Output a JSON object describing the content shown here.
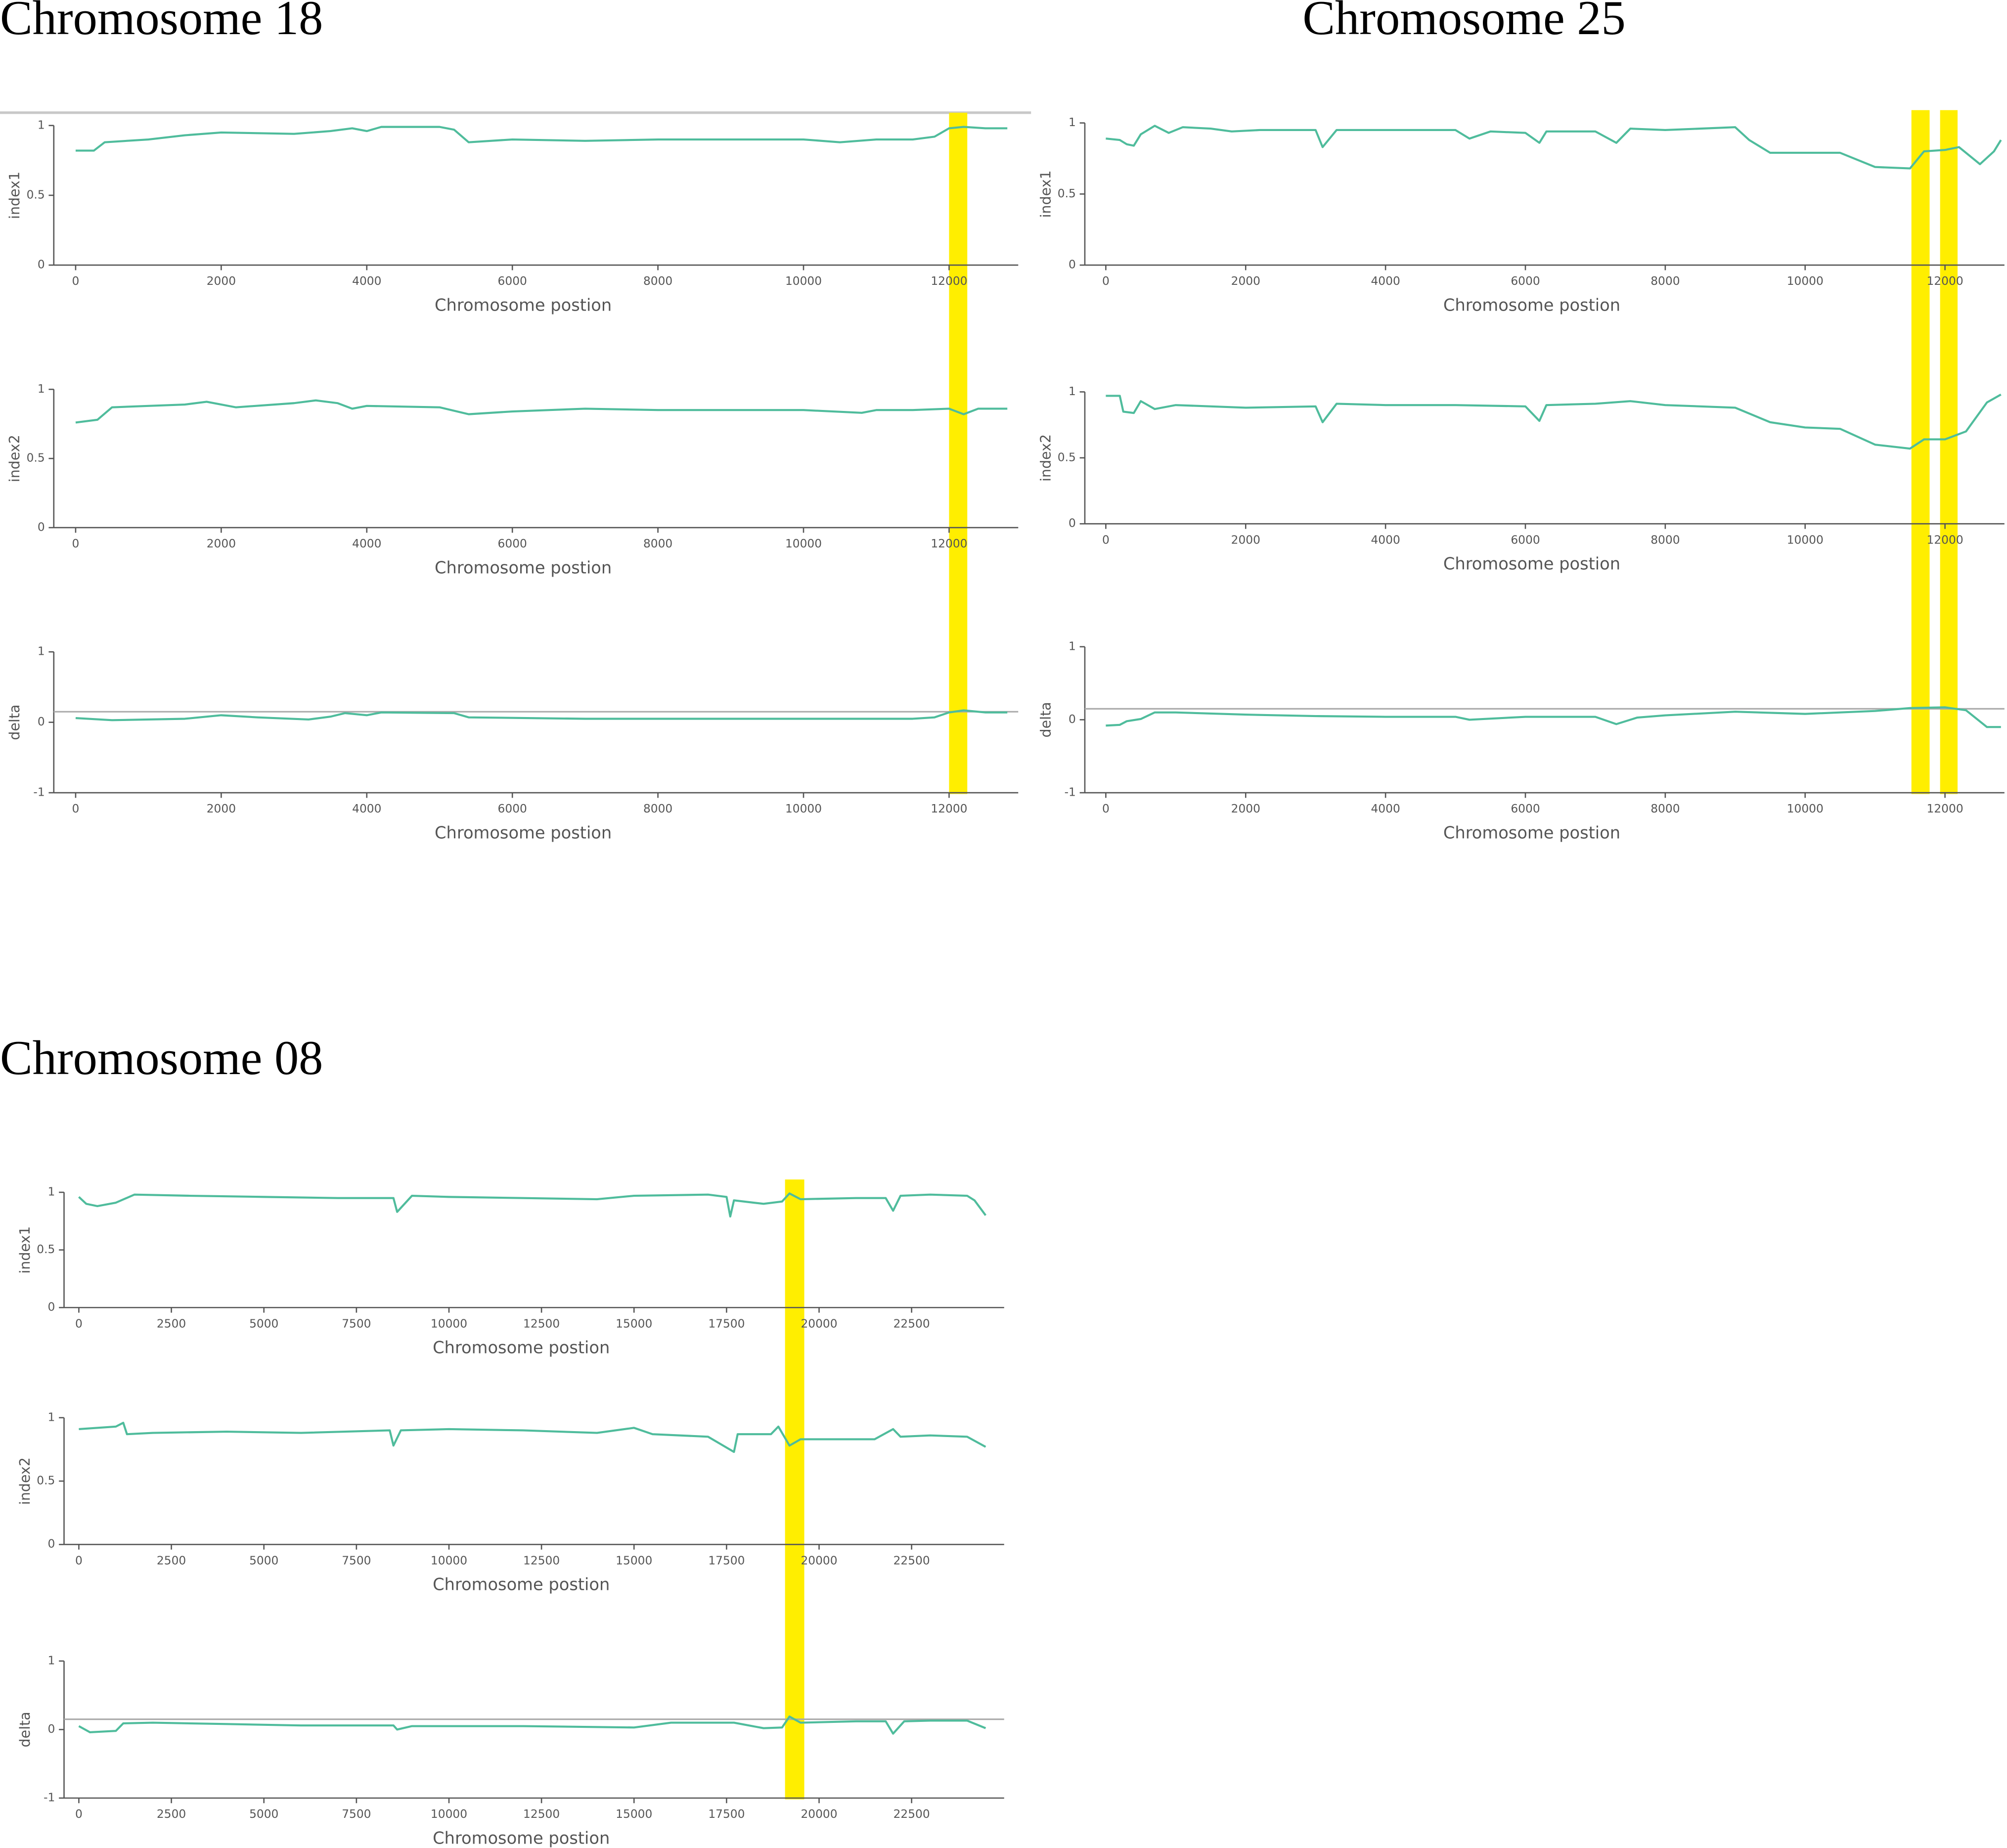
{
  "chart_data": [
    {
      "type": "line",
      "title": "Chromosome 18",
      "ylabel": "index1",
      "xlabel": "Chromosome postion",
      "color": "#4fbc9c",
      "xlim": [
        -300,
        12950
      ],
      "ylim": [
        0,
        1
      ],
      "xticks": [
        0,
        2000,
        4000,
        6000,
        8000,
        10000,
        12000
      ],
      "yticks": [
        0,
        0.5,
        1
      ],
      "highlights": [
        [
          12000,
          12250
        ]
      ],
      "highlight_color": "#ffee00",
      "x": [
        0,
        250,
        400,
        1000,
        1500,
        2000,
        3000,
        3500,
        3800,
        4000,
        4200,
        5000,
        5200,
        5400,
        6000,
        7000,
        8000,
        9000,
        10000,
        10500,
        11000,
        11500,
        11800,
        12000,
        12200,
        12500,
        12800
      ],
      "values": [
        0.82,
        0.82,
        0.88,
        0.9,
        0.93,
        0.95,
        0.94,
        0.96,
        0.98,
        0.96,
        0.99,
        0.99,
        0.97,
        0.88,
        0.9,
        0.89,
        0.9,
        0.9,
        0.9,
        0.88,
        0.9,
        0.9,
        0.92,
        0.98,
        0.99,
        0.98,
        0.98
      ]
    },
    {
      "type": "line",
      "ylabel": "index2",
      "xlabel": "Chromosome postion",
      "color": "#4fbc9c",
      "xlim": [
        -300,
        12950
      ],
      "ylim": [
        0,
        1
      ],
      "xticks": [
        0,
        2000,
        4000,
        6000,
        8000,
        10000,
        12000
      ],
      "yticks": [
        0,
        0.5,
        1
      ],
      "x": [
        0,
        300,
        500,
        1000,
        1500,
        1800,
        2200,
        3000,
        3300,
        3600,
        3800,
        4000,
        5000,
        5400,
        6000,
        7000,
        8000,
        9000,
        10000,
        10800,
        11000,
        11500,
        12000,
        12200,
        12400,
        12800
      ],
      "values": [
        0.76,
        0.78,
        0.87,
        0.88,
        0.89,
        0.91,
        0.87,
        0.9,
        0.92,
        0.9,
        0.86,
        0.88,
        0.87,
        0.82,
        0.84,
        0.86,
        0.85,
        0.85,
        0.85,
        0.83,
        0.85,
        0.85,
        0.86,
        0.82,
        0.86,
        0.86
      ]
    },
    {
      "type": "line",
      "ylabel": "delta",
      "xlabel": "Chromosome postion",
      "color": "#4fbc9c",
      "xlim": [
        -300,
        12950
      ],
      "ylim": [
        -1,
        1
      ],
      "xticks": [
        0,
        2000,
        4000,
        6000,
        8000,
        10000,
        12000
      ],
      "yticks": [
        -1,
        0,
        1
      ],
      "hline": 0.15,
      "hline_color": "#aaaaaa",
      "x": [
        0,
        500,
        1500,
        2000,
        2500,
        3200,
        3500,
        3700,
        4000,
        4200,
        5200,
        5400,
        7000,
        9000,
        10000,
        11500,
        11800,
        12000,
        12200,
        12500,
        12800
      ],
      "values": [
        0.06,
        0.03,
        0.05,
        0.1,
        0.07,
        0.04,
        0.08,
        0.13,
        0.1,
        0.14,
        0.13,
        0.07,
        0.05,
        0.05,
        0.05,
        0.05,
        0.07,
        0.14,
        0.17,
        0.14,
        0.14
      ]
    },
    {
      "type": "line",
      "title": "Chromosome 25",
      "ylabel": "index1",
      "xlabel": "Chromosome postion",
      "color": "#4fbc9c",
      "xlim": [
        -300,
        12850
      ],
      "ylim": [
        0,
        1
      ],
      "xticks": [
        0,
        2000,
        4000,
        6000,
        8000,
        10000,
        12000
      ],
      "yticks": [
        0,
        0.5,
        1
      ],
      "highlights": [
        [
          11520,
          11780
        ],
        [
          11930,
          12180
        ]
      ],
      "highlight_color": "#ffee00",
      "x": [
        0,
        200,
        300,
        400,
        500,
        700,
        900,
        1100,
        1500,
        1800,
        2200,
        3000,
        3100,
        3300,
        4000,
        5000,
        5200,
        5500,
        6000,
        6200,
        6300,
        7000,
        7300,
        7500,
        8000,
        9000,
        9200,
        9500,
        10500,
        11000,
        11500,
        11700,
        12000,
        12200,
        12400,
        12500,
        12700,
        12800
      ],
      "values": [
        0.89,
        0.88,
        0.85,
        0.84,
        0.92,
        0.98,
        0.93,
        0.97,
        0.96,
        0.94,
        0.95,
        0.95,
        0.83,
        0.95,
        0.95,
        0.95,
        0.89,
        0.94,
        0.93,
        0.86,
        0.94,
        0.94,
        0.86,
        0.96,
        0.95,
        0.97,
        0.88,
        0.79,
        0.79,
        0.69,
        0.68,
        0.8,
        0.81,
        0.83,
        0.75,
        0.71,
        0.8,
        0.88
      ]
    },
    {
      "type": "line",
      "ylabel": "index2",
      "xlabel": "Chromosome postion",
      "color": "#4fbc9c",
      "xlim": [
        -300,
        12850
      ],
      "ylim": [
        0,
        1
      ],
      "xticks": [
        0,
        2000,
        4000,
        6000,
        8000,
        10000,
        12000
      ],
      "yticks": [
        0,
        0.5,
        1
      ],
      "x": [
        0,
        200,
        250,
        400,
        500,
        700,
        1000,
        2000,
        3000,
        3100,
        3300,
        4000,
        5000,
        6000,
        6200,
        6300,
        7000,
        7500,
        8000,
        9000,
        9500,
        10000,
        10500,
        11000,
        11500,
        11700,
        12000,
        12300,
        12600,
        12800
      ],
      "values": [
        0.97,
        0.97,
        0.85,
        0.84,
        0.93,
        0.87,
        0.9,
        0.88,
        0.89,
        0.77,
        0.91,
        0.9,
        0.9,
        0.89,
        0.78,
        0.9,
        0.91,
        0.93,
        0.9,
        0.88,
        0.77,
        0.73,
        0.72,
        0.6,
        0.57,
        0.64,
        0.64,
        0.7,
        0.92,
        0.98
      ]
    },
    {
      "type": "line",
      "ylabel": "delta",
      "xlabel": "Chromosome postion",
      "color": "#4fbc9c",
      "xlim": [
        -300,
        12850
      ],
      "ylim": [
        -1,
        1
      ],
      "xticks": [
        0,
        2000,
        4000,
        6000,
        8000,
        10000,
        12000
      ],
      "yticks": [
        -1,
        0,
        1
      ],
      "hline": 0.15,
      "hline_color": "#aaaaaa",
      "x": [
        0,
        200,
        300,
        500,
        700,
        1000,
        2000,
        3000,
        4000,
        5000,
        5200,
        6000,
        7000,
        7300,
        7600,
        8000,
        9000,
        10000,
        11000,
        11500,
        12000,
        12300,
        12600,
        12800
      ],
      "values": [
        -0.08,
        -0.07,
        -0.02,
        0.01,
        0.1,
        0.1,
        0.07,
        0.05,
        0.04,
        0.04,
        0.0,
        0.04,
        0.04,
        -0.06,
        0.03,
        0.06,
        0.11,
        0.08,
        0.12,
        0.16,
        0.17,
        0.13,
        -0.1,
        -0.1
      ]
    },
    {
      "type": "line",
      "title": "Chromosome 08",
      "ylabel": "index1",
      "xlabel": "Chromosome postion",
      "color": "#4fbc9c",
      "xlim": [
        -400,
        25000
      ],
      "ylim": [
        0,
        1
      ],
      "xticks": [
        0,
        2500,
        5000,
        7500,
        10000,
        12500,
        15000,
        17500,
        20000,
        22500
      ],
      "yticks": [
        0,
        0.5,
        1
      ],
      "highlights": [
        [
          19080,
          19600
        ]
      ],
      "highlight_color": "#ffee00",
      "x": [
        0,
        200,
        500,
        1000,
        1500,
        3000,
        5000,
        7000,
        8500,
        8600,
        9000,
        10000,
        12000,
        14000,
        15000,
        17000,
        17500,
        17600,
        17700,
        18500,
        19000,
        19200,
        19500,
        21000,
        21800,
        22000,
        22200,
        23000,
        24000,
        24200,
        24500
      ],
      "values": [
        0.96,
        0.9,
        0.88,
        0.91,
        0.98,
        0.97,
        0.96,
        0.95,
        0.95,
        0.83,
        0.97,
        0.96,
        0.95,
        0.94,
        0.97,
        0.98,
        0.96,
        0.79,
        0.93,
        0.9,
        0.92,
        0.99,
        0.94,
        0.95,
        0.95,
        0.84,
        0.97,
        0.98,
        0.97,
        0.93,
        0.8
      ]
    },
    {
      "type": "line",
      "ylabel": "index2",
      "xlabel": "Chromosome postion",
      "color": "#4fbc9c",
      "xlim": [
        -400,
        25000
      ],
      "ylim": [
        0,
        1
      ],
      "xticks": [
        0,
        2500,
        5000,
        7500,
        10000,
        12500,
        15000,
        17500,
        20000,
        22500
      ],
      "yticks": [
        0,
        0.5,
        1
      ],
      "x": [
        0,
        1000,
        1200,
        1300,
        2000,
        4000,
        6000,
        8400,
        8500,
        8700,
        10000,
        12000,
        14000,
        15000,
        15500,
        17000,
        17700,
        17800,
        18700,
        18900,
        19200,
        19500,
        21000,
        21500,
        22000,
        22200,
        23000,
        24000,
        24500
      ],
      "values": [
        0.91,
        0.93,
        0.96,
        0.87,
        0.88,
        0.89,
        0.88,
        0.9,
        0.78,
        0.9,
        0.91,
        0.9,
        0.88,
        0.92,
        0.87,
        0.85,
        0.73,
        0.87,
        0.87,
        0.93,
        0.78,
        0.83,
        0.83,
        0.83,
        0.91,
        0.85,
        0.86,
        0.85,
        0.77
      ]
    },
    {
      "type": "line",
      "ylabel": "delta",
      "xlabel": "Chromosome postion",
      "color": "#4fbc9c",
      "xlim": [
        -400,
        25000
      ],
      "ylim": [
        -1,
        1
      ],
      "xticks": [
        0,
        2500,
        5000,
        7500,
        10000,
        12500,
        15000,
        17500,
        20000,
        22500
      ],
      "yticks": [
        -1,
        0,
        1
      ],
      "hline": 0.15,
      "hline_color": "#aaaaaa",
      "x": [
        0,
        300,
        1000,
        1200,
        2000,
        4000,
        6000,
        8500,
        8600,
        9000,
        12000,
        15000,
        16000,
        17000,
        17700,
        18500,
        19000,
        19200,
        19500,
        21000,
        21800,
        22000,
        22300,
        23000,
        24000,
        24500
      ],
      "values": [
        0.05,
        -0.04,
        -0.02,
        0.09,
        0.1,
        0.08,
        0.06,
        0.06,
        0.0,
        0.05,
        0.05,
        0.03,
        0.1,
        0.1,
        0.1,
        0.02,
        0.03,
        0.19,
        0.1,
        0.12,
        0.12,
        -0.06,
        0.12,
        0.13,
        0.13,
        0.02
      ]
    }
  ]
}
